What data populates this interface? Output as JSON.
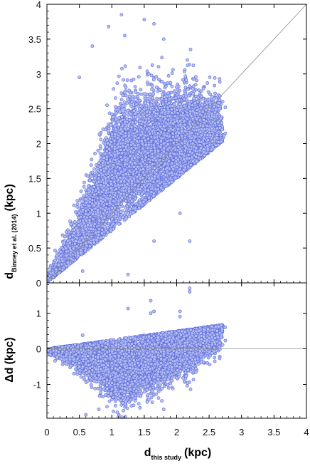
{
  "chart_data": [
    {
      "type": "scatter",
      "panel": "top",
      "ylabel": {
        "main": "d",
        "sub": "Binney et al. (2014)",
        "unit": "(kpc)"
      },
      "xlim": [
        0,
        4
      ],
      "ylim": [
        0,
        4
      ],
      "xticks": [
        "0",
        "0.5",
        "1",
        "1.5",
        "2",
        "2.5",
        "3",
        "3.5",
        "4"
      ],
      "yticks": [
        "0",
        "0.5",
        "1",
        "1.5",
        "2",
        "2.5",
        "3",
        "3.5",
        "4"
      ],
      "reference_line": "y = x",
      "marker_color": "#b4bef2",
      "marker_edge": "#5a68d8",
      "point_count": 9000,
      "sample_points": [
        [
          0.05,
          0.05
        ],
        [
          0.2,
          0.2
        ],
        [
          0.3,
          0.45
        ],
        [
          0.4,
          0.8
        ],
        [
          0.5,
          1.0
        ],
        [
          0.6,
          1.2
        ],
        [
          0.7,
          1.3
        ],
        [
          0.8,
          1.45
        ],
        [
          1.0,
          1.55
        ],
        [
          1.2,
          1.7
        ],
        [
          1.4,
          1.8
        ],
        [
          1.6,
          1.9
        ],
        [
          1.8,
          2.0
        ],
        [
          2.0,
          2.05
        ],
        [
          2.2,
          2.1
        ],
        [
          2.5,
          2.2
        ],
        [
          2.7,
          2.2
        ],
        [
          1.15,
          3.85
        ],
        [
          1.5,
          3.78
        ],
        [
          1.65,
          3.72
        ],
        [
          0.95,
          3.68
        ],
        [
          1.2,
          3.55
        ],
        [
          1.8,
          3.5
        ],
        [
          0.7,
          3.4
        ],
        [
          0.5,
          2.95
        ],
        [
          2.2,
          0.6
        ],
        [
          1.65,
          0.6
        ],
        [
          0.55,
          0.17
        ],
        [
          1.25,
          0.12
        ],
        [
          2.05,
          1.0
        ]
      ]
    },
    {
      "type": "scatter",
      "panel": "bottom",
      "xlabel": {
        "main": "d",
        "sub": "this study",
        "unit": "(kpc)"
      },
      "ylabel": {
        "main": "Δd",
        "unit": "(kpc)"
      },
      "xlim": [
        0,
        4
      ],
      "ylim": [
        -1.95,
        1.85
      ],
      "xticks": [
        "0",
        "0.5",
        "1",
        "1.5",
        "2",
        "2.5",
        "3",
        "3.5",
        "4"
      ],
      "yticks": [
        "-1",
        "0",
        "1"
      ],
      "reference_line": "y = 0",
      "marker_color": "#b4bef2",
      "marker_edge": "#5a68d8",
      "point_count": 9000,
      "sample_points": [
        [
          0.1,
          -0.05
        ],
        [
          0.3,
          -0.3
        ],
        [
          0.5,
          -0.4
        ],
        [
          0.7,
          -0.5
        ],
        [
          1.0,
          -0.4
        ],
        [
          1.2,
          -0.35
        ],
        [
          1.5,
          -0.25
        ],
        [
          1.8,
          -0.15
        ],
        [
          2.0,
          -0.1
        ],
        [
          2.3,
          0.0
        ],
        [
          2.5,
          0.05
        ],
        [
          2.7,
          0.55
        ],
        [
          2.2,
          1.7
        ],
        [
          2.2,
          1.6
        ],
        [
          1.6,
          1.35
        ],
        [
          0.6,
          -1.85
        ],
        [
          1.1,
          -1.9
        ],
        [
          0.8,
          -1.7
        ],
        [
          1.6,
          1.0
        ],
        [
          2.05,
          0.9
        ]
      ]
    }
  ]
}
